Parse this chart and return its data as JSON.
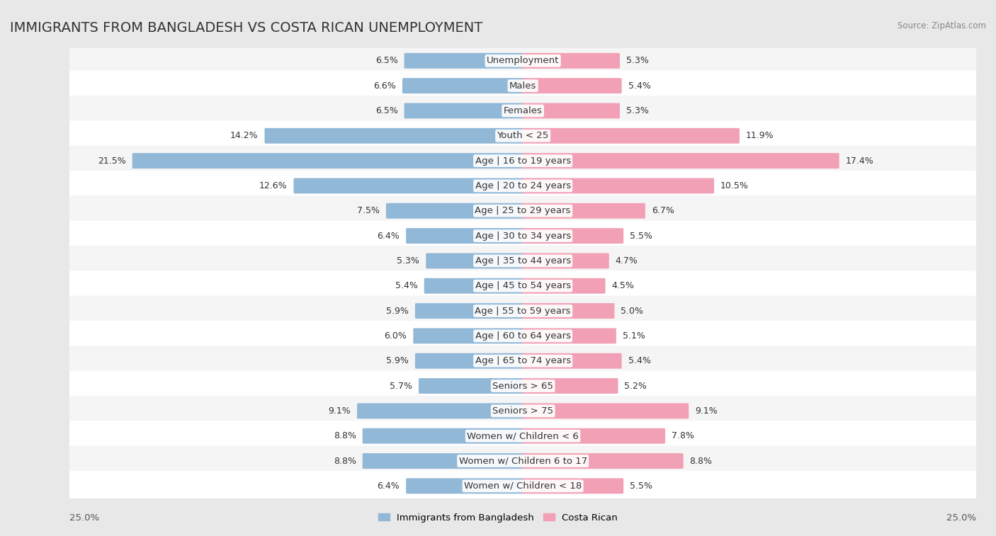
{
  "title": "IMMIGRANTS FROM BANGLADESH VS COSTA RICAN UNEMPLOYMENT",
  "source": "Source: ZipAtlas.com",
  "categories": [
    "Unemployment",
    "Males",
    "Females",
    "Youth < 25",
    "Age | 16 to 19 years",
    "Age | 20 to 24 years",
    "Age | 25 to 29 years",
    "Age | 30 to 34 years",
    "Age | 35 to 44 years",
    "Age | 45 to 54 years",
    "Age | 55 to 59 years",
    "Age | 60 to 64 years",
    "Age | 65 to 74 years",
    "Seniors > 65",
    "Seniors > 75",
    "Women w/ Children < 6",
    "Women w/ Children 6 to 17",
    "Women w/ Children < 18"
  ],
  "left_values": [
    6.5,
    6.6,
    6.5,
    14.2,
    21.5,
    12.6,
    7.5,
    6.4,
    5.3,
    5.4,
    5.9,
    6.0,
    5.9,
    5.7,
    9.1,
    8.8,
    8.8,
    6.4
  ],
  "right_values": [
    5.3,
    5.4,
    5.3,
    11.9,
    17.4,
    10.5,
    6.7,
    5.5,
    4.7,
    4.5,
    5.0,
    5.1,
    5.4,
    5.2,
    9.1,
    7.8,
    8.8,
    5.5
  ],
  "left_color": "#92b8d8",
  "right_color": "#f2a0b5",
  "bar_height": 0.52,
  "xlim": 25.0,
  "background_color": "#e8e8e8",
  "row_bg_even": "#f5f5f5",
  "row_bg_odd": "#ffffff",
  "legend_left": "Immigrants from Bangladesh",
  "legend_right": "Costa Rican",
  "title_fontsize": 14,
  "label_fontsize": 9.5,
  "value_fontsize": 9,
  "axis_label_fontsize": 9.5
}
